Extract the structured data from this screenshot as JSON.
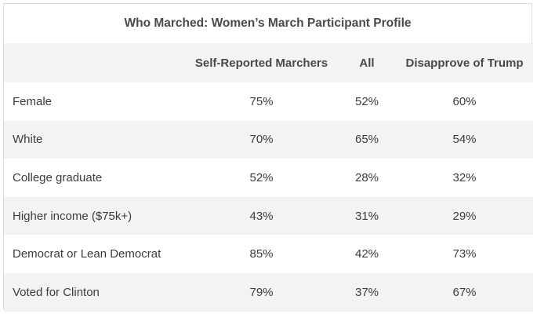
{
  "chart_data": {
    "type": "table",
    "title": "Who Marched: Women’s March Participant Profile",
    "columns": [
      "",
      "Self-Reported Marchers",
      "All",
      "Disapprove of Trump"
    ],
    "rows": [
      {
        "label": "Female",
        "values": [
          "75%",
          "52%",
          "60%"
        ]
      },
      {
        "label": "White",
        "values": [
          "70%",
          "65%",
          "54%"
        ]
      },
      {
        "label": "College graduate",
        "values": [
          "52%",
          "28%",
          "32%"
        ]
      },
      {
        "label": "Higher income ($75k+)",
        "values": [
          "43%",
          "31%",
          "29%"
        ]
      },
      {
        "label": "Democrat or Lean Democrat",
        "values": [
          "85%",
          "42%",
          "73%"
        ]
      },
      {
        "label": "Voted for Clinton",
        "values": [
          "79%",
          "37%",
          "67%"
        ]
      }
    ]
  }
}
